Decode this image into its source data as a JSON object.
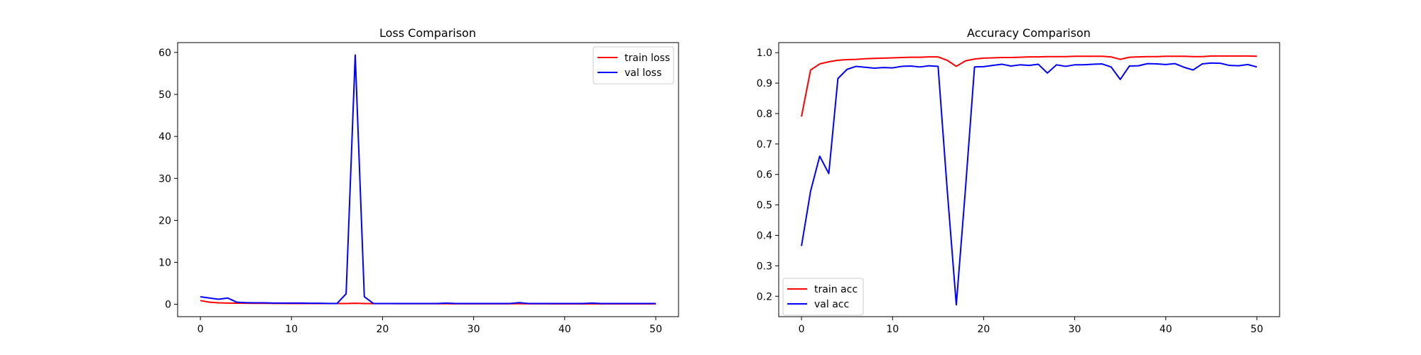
{
  "chart_data": [
    {
      "type": "line",
      "title": "Loss Comparison",
      "xlabel": "",
      "ylabel": "",
      "xlim": [
        -2.5,
        52.5
      ],
      "ylim": [
        -2.94,
        62.35
      ],
      "xticks": [
        0,
        10,
        20,
        30,
        40,
        50
      ],
      "yticks": [
        0,
        10,
        20,
        30,
        40,
        50,
        60
      ],
      "grid": false,
      "legend_position": "upper right",
      "x": [
        0,
        1,
        2,
        3,
        4,
        5,
        6,
        7,
        8,
        9,
        10,
        11,
        12,
        13,
        14,
        15,
        16,
        17,
        18,
        19,
        20,
        21,
        22,
        23,
        24,
        25,
        26,
        27,
        28,
        29,
        30,
        31,
        32,
        33,
        34,
        35,
        36,
        37,
        38,
        39,
        40,
        41,
        42,
        43,
        44,
        45,
        46,
        47,
        48,
        49,
        50
      ],
      "series": [
        {
          "name": "train loss",
          "color": "#ff0000",
          "values": [
            0.9,
            0.5,
            0.35,
            0.3,
            0.27,
            0.25,
            0.24,
            0.23,
            0.22,
            0.21,
            0.2,
            0.2,
            0.19,
            0.19,
            0.18,
            0.18,
            0.2,
            0.25,
            0.2,
            0.17,
            0.16,
            0.16,
            0.15,
            0.15,
            0.15,
            0.14,
            0.14,
            0.14,
            0.13,
            0.13,
            0.13,
            0.13,
            0.13,
            0.12,
            0.12,
            0.14,
            0.12,
            0.12,
            0.12,
            0.11,
            0.11,
            0.11,
            0.11,
            0.11,
            0.11,
            0.11,
            0.1,
            0.1,
            0.1,
            0.1,
            0.1
          ]
        },
        {
          "name": "val loss",
          "color": "#0000ff",
          "values": [
            1.8,
            1.5,
            1.2,
            1.5,
            0.5,
            0.4,
            0.35,
            0.35,
            0.3,
            0.3,
            0.3,
            0.3,
            0.25,
            0.25,
            0.22,
            0.2,
            2.5,
            59.4,
            1.8,
            0.2,
            0.2,
            0.2,
            0.2,
            0.2,
            0.2,
            0.2,
            0.2,
            0.3,
            0.2,
            0.2,
            0.2,
            0.2,
            0.2,
            0.2,
            0.2,
            0.4,
            0.2,
            0.2,
            0.2,
            0.2,
            0.2,
            0.2,
            0.2,
            0.3,
            0.2,
            0.2,
            0.2,
            0.2,
            0.2,
            0.2,
            0.2
          ]
        }
      ]
    },
    {
      "type": "line",
      "title": "Accuracy Comparison",
      "xlabel": "",
      "ylabel": "",
      "xlim": [
        -2.5,
        52.5
      ],
      "ylim": [
        0.133,
        1.033
      ],
      "xticks": [
        0,
        10,
        20,
        30,
        40,
        50
      ],
      "yticks": [
        0.2,
        0.3,
        0.4,
        0.5,
        0.6,
        0.7,
        0.8,
        0.9,
        1.0
      ],
      "grid": false,
      "legend_position": "lower left",
      "x": [
        0,
        1,
        2,
        3,
        4,
        5,
        6,
        7,
        8,
        9,
        10,
        11,
        12,
        13,
        14,
        15,
        16,
        17,
        18,
        19,
        20,
        21,
        22,
        23,
        24,
        25,
        26,
        27,
        28,
        29,
        30,
        31,
        32,
        33,
        34,
        35,
        36,
        37,
        38,
        39,
        40,
        41,
        42,
        43,
        44,
        45,
        46,
        47,
        48,
        49,
        50
      ],
      "series": [
        {
          "name": "train acc",
          "color": "#ff0000",
          "values": [
            0.79,
            0.943,
            0.963,
            0.97,
            0.975,
            0.977,
            0.978,
            0.98,
            0.981,
            0.982,
            0.983,
            0.984,
            0.985,
            0.985,
            0.986,
            0.986,
            0.975,
            0.955,
            0.973,
            0.979,
            0.982,
            0.983,
            0.984,
            0.984,
            0.985,
            0.986,
            0.986,
            0.987,
            0.987,
            0.987,
            0.988,
            0.988,
            0.988,
            0.988,
            0.986,
            0.978,
            0.985,
            0.986,
            0.987,
            0.987,
            0.988,
            0.988,
            0.988,
            0.987,
            0.987,
            0.989,
            0.989,
            0.989,
            0.989,
            0.989,
            0.988
          ]
        },
        {
          "name": "val acc",
          "color": "#0000ff",
          "values": [
            0.365,
            0.545,
            0.66,
            0.603,
            0.915,
            0.945,
            0.955,
            0.952,
            0.949,
            0.951,
            0.95,
            0.955,
            0.956,
            0.953,
            0.957,
            0.955,
            0.55,
            0.172,
            0.55,
            0.953,
            0.954,
            0.958,
            0.962,
            0.956,
            0.96,
            0.958,
            0.962,
            0.933,
            0.96,
            0.955,
            0.96,
            0.96,
            0.962,
            0.963,
            0.953,
            0.912,
            0.956,
            0.957,
            0.964,
            0.963,
            0.961,
            0.964,
            0.952,
            0.943,
            0.963,
            0.966,
            0.965,
            0.958,
            0.957,
            0.961,
            0.953
          ]
        }
      ]
    }
  ]
}
